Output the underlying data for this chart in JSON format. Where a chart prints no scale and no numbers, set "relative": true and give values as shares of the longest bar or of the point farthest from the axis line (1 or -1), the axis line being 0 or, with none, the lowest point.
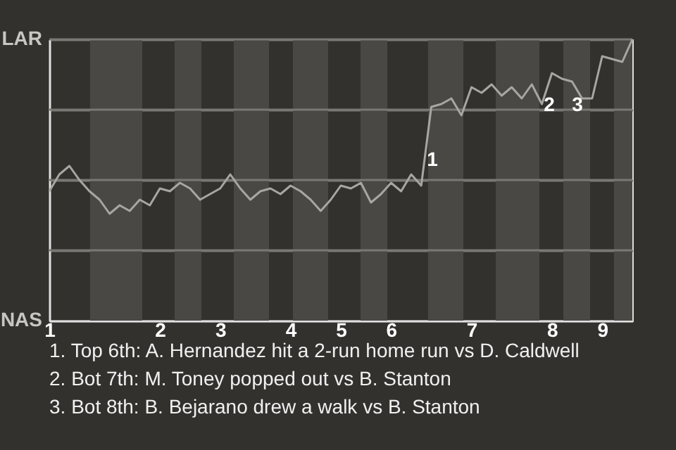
{
  "chart_data": {
    "type": "line",
    "relative": true,
    "categories": [
      "1",
      null,
      null,
      null,
      null,
      null,
      null,
      null,
      null,
      null,
      null,
      "2",
      null,
      null,
      null,
      null,
      null,
      "3",
      null,
      null,
      null,
      null,
      null,
      null,
      "4",
      null,
      null,
      null,
      null,
      "5",
      null,
      null,
      null,
      null,
      "6",
      null,
      null,
      null,
      null,
      null,
      null,
      null,
      "7",
      null,
      null,
      null,
      null,
      null,
      null,
      null,
      "8",
      null,
      null,
      null,
      null,
      "9",
      null,
      null,
      null
    ],
    "series": [
      {
        "color": "#a8a6a3",
        "values": [
          0.46,
          0.52,
          0.55,
          0.5,
          0.46,
          0.43,
          0.38,
          0.41,
          0.39,
          0.43,
          0.41,
          0.47,
          0.46,
          0.49,
          0.47,
          0.43,
          0.45,
          0.47,
          0.52,
          0.47,
          0.43,
          0.46,
          0.47,
          0.45,
          0.48,
          0.46,
          0.43,
          0.39,
          0.43,
          0.48,
          0.47,
          0.49,
          0.42,
          0.45,
          0.49,
          0.46,
          0.52,
          0.48,
          0.76,
          0.77,
          0.79,
          0.73,
          0.83,
          0.81,
          0.84,
          0.8,
          0.83,
          0.79,
          0.84,
          0.77,
          0.88,
          0.86,
          0.85,
          0.79,
          0.79,
          0.94,
          0.93,
          0.92,
          1
        ],
        "name": null
      }
    ],
    "grid": "y",
    "marker": "none",
    "line_style": "solid",
    "annotations": [
      "LAR",
      "NAS",
      "1",
      "2",
      "3",
      "1. Top 6th: A. Hernandez hit a 2-run home run vs D. Caldwell",
      "2. Bot 7th: M. Toney popped out vs B. Stanton",
      "3. Bot 8th: B. Bejarano drew a walk vs B. Stanton"
    ]
  }
}
